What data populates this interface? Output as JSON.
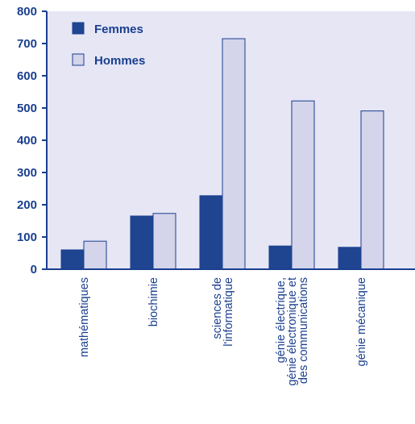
{
  "chart_data": {
    "type": "bar",
    "categories": [
      [
        "mathématiques"
      ],
      [
        "biochimie"
      ],
      [
        "sciences de",
        "l'informatique"
      ],
      [
        "génie électrique,",
        "génie électronique et",
        "des communications"
      ],
      [
        "génie mécanique"
      ]
    ],
    "series": [
      {
        "name": "Femmes",
        "values": [
          60,
          165,
          228,
          72,
          68
        ],
        "color": "#1f4590"
      },
      {
        "name": "Hommes",
        "values": [
          87,
          173,
          715,
          522,
          491
        ],
        "color": "#d4d4ea"
      }
    ],
    "ylim": [
      0,
      800
    ],
    "yticks": [
      "0",
      "100",
      "200",
      "300",
      "400",
      "500",
      "600",
      "700",
      "800"
    ],
    "title": "",
    "xlabel": "",
    "ylabel": "",
    "background": "#e6e6f5",
    "axis_color": "#1a3f8f",
    "grid": false,
    "legend_position": "top-left"
  }
}
